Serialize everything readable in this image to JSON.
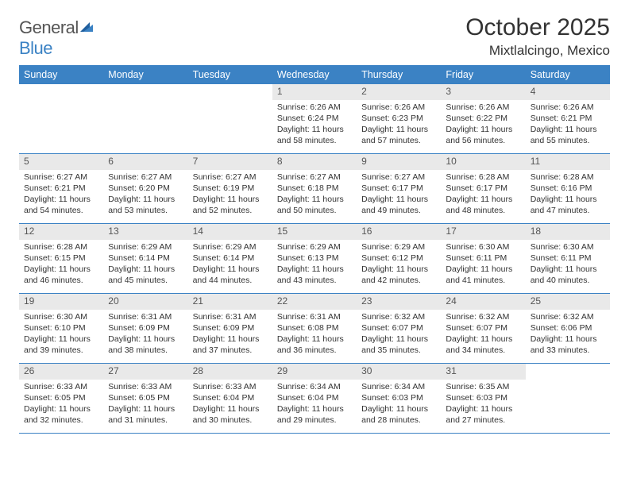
{
  "logo": {
    "word1": "General",
    "word2": "Blue"
  },
  "title": "October 2025",
  "location": "Mixtlalcingo, Mexico",
  "colors": {
    "header_bg": "#3b82c4",
    "header_text": "#ffffff",
    "daynum_bg": "#e9e9e9",
    "rule": "#3b82c4",
    "body_text": "#333333",
    "logo_gray": "#555555",
    "logo_blue": "#3b82c4",
    "page_bg": "#ffffff"
  },
  "day_headers": [
    "Sunday",
    "Monday",
    "Tuesday",
    "Wednesday",
    "Thursday",
    "Friday",
    "Saturday"
  ],
  "weeks": [
    [
      {
        "n": "",
        "sr": "",
        "ss": "",
        "dl": ""
      },
      {
        "n": "",
        "sr": "",
        "ss": "",
        "dl": ""
      },
      {
        "n": "",
        "sr": "",
        "ss": "",
        "dl": ""
      },
      {
        "n": "1",
        "sr": "6:26 AM",
        "ss": "6:24 PM",
        "dl": "11 hours and 58 minutes."
      },
      {
        "n": "2",
        "sr": "6:26 AM",
        "ss": "6:23 PM",
        "dl": "11 hours and 57 minutes."
      },
      {
        "n": "3",
        "sr": "6:26 AM",
        "ss": "6:22 PM",
        "dl": "11 hours and 56 minutes."
      },
      {
        "n": "4",
        "sr": "6:26 AM",
        "ss": "6:21 PM",
        "dl": "11 hours and 55 minutes."
      }
    ],
    [
      {
        "n": "5",
        "sr": "6:27 AM",
        "ss": "6:21 PM",
        "dl": "11 hours and 54 minutes."
      },
      {
        "n": "6",
        "sr": "6:27 AM",
        "ss": "6:20 PM",
        "dl": "11 hours and 53 minutes."
      },
      {
        "n": "7",
        "sr": "6:27 AM",
        "ss": "6:19 PM",
        "dl": "11 hours and 52 minutes."
      },
      {
        "n": "8",
        "sr": "6:27 AM",
        "ss": "6:18 PM",
        "dl": "11 hours and 50 minutes."
      },
      {
        "n": "9",
        "sr": "6:27 AM",
        "ss": "6:17 PM",
        "dl": "11 hours and 49 minutes."
      },
      {
        "n": "10",
        "sr": "6:28 AM",
        "ss": "6:17 PM",
        "dl": "11 hours and 48 minutes."
      },
      {
        "n": "11",
        "sr": "6:28 AM",
        "ss": "6:16 PM",
        "dl": "11 hours and 47 minutes."
      }
    ],
    [
      {
        "n": "12",
        "sr": "6:28 AM",
        "ss": "6:15 PM",
        "dl": "11 hours and 46 minutes."
      },
      {
        "n": "13",
        "sr": "6:29 AM",
        "ss": "6:14 PM",
        "dl": "11 hours and 45 minutes."
      },
      {
        "n": "14",
        "sr": "6:29 AM",
        "ss": "6:14 PM",
        "dl": "11 hours and 44 minutes."
      },
      {
        "n": "15",
        "sr": "6:29 AM",
        "ss": "6:13 PM",
        "dl": "11 hours and 43 minutes."
      },
      {
        "n": "16",
        "sr": "6:29 AM",
        "ss": "6:12 PM",
        "dl": "11 hours and 42 minutes."
      },
      {
        "n": "17",
        "sr": "6:30 AM",
        "ss": "6:11 PM",
        "dl": "11 hours and 41 minutes."
      },
      {
        "n": "18",
        "sr": "6:30 AM",
        "ss": "6:11 PM",
        "dl": "11 hours and 40 minutes."
      }
    ],
    [
      {
        "n": "19",
        "sr": "6:30 AM",
        "ss": "6:10 PM",
        "dl": "11 hours and 39 minutes."
      },
      {
        "n": "20",
        "sr": "6:31 AM",
        "ss": "6:09 PM",
        "dl": "11 hours and 38 minutes."
      },
      {
        "n": "21",
        "sr": "6:31 AM",
        "ss": "6:09 PM",
        "dl": "11 hours and 37 minutes."
      },
      {
        "n": "22",
        "sr": "6:31 AM",
        "ss": "6:08 PM",
        "dl": "11 hours and 36 minutes."
      },
      {
        "n": "23",
        "sr": "6:32 AM",
        "ss": "6:07 PM",
        "dl": "11 hours and 35 minutes."
      },
      {
        "n": "24",
        "sr": "6:32 AM",
        "ss": "6:07 PM",
        "dl": "11 hours and 34 minutes."
      },
      {
        "n": "25",
        "sr": "6:32 AM",
        "ss": "6:06 PM",
        "dl": "11 hours and 33 minutes."
      }
    ],
    [
      {
        "n": "26",
        "sr": "6:33 AM",
        "ss": "6:05 PM",
        "dl": "11 hours and 32 minutes."
      },
      {
        "n": "27",
        "sr": "6:33 AM",
        "ss": "6:05 PM",
        "dl": "11 hours and 31 minutes."
      },
      {
        "n": "28",
        "sr": "6:33 AM",
        "ss": "6:04 PM",
        "dl": "11 hours and 30 minutes."
      },
      {
        "n": "29",
        "sr": "6:34 AM",
        "ss": "6:04 PM",
        "dl": "11 hours and 29 minutes."
      },
      {
        "n": "30",
        "sr": "6:34 AM",
        "ss": "6:03 PM",
        "dl": "11 hours and 28 minutes."
      },
      {
        "n": "31",
        "sr": "6:35 AM",
        "ss": "6:03 PM",
        "dl": "11 hours and 27 minutes."
      },
      {
        "n": "",
        "sr": "",
        "ss": "",
        "dl": ""
      }
    ]
  ],
  "labels": {
    "sunrise": "Sunrise:",
    "sunset": "Sunset:",
    "daylight": "Daylight:"
  }
}
